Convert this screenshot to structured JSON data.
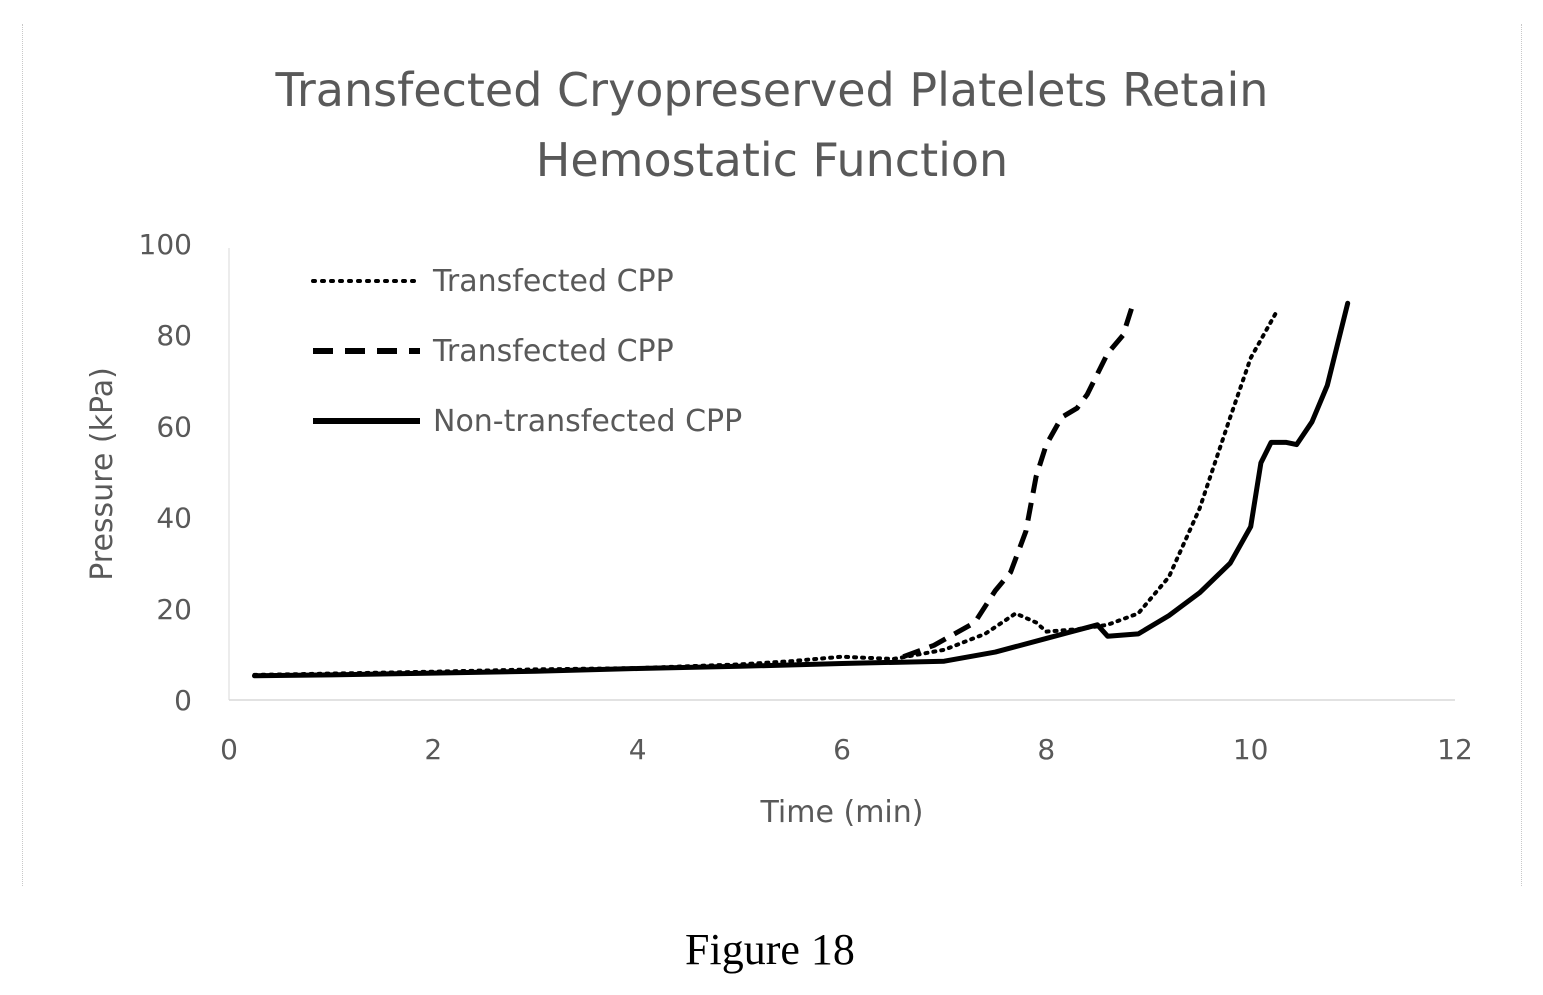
{
  "chart_data": {
    "type": "line",
    "title": [
      "Transfected Cryopreserved Platelets Retain",
      "Hemostatic Function"
    ],
    "xlabel": "Time (min)",
    "ylabel": "Pressure (kPa)",
    "xlim": [
      0,
      12
    ],
    "ylim": [
      0,
      100
    ],
    "x_ticks": [
      "0",
      "2",
      "4",
      "6",
      "8",
      "10",
      "12"
    ],
    "y_ticks": [
      "0",
      "20",
      "40",
      "60",
      "80",
      "100"
    ],
    "grid": false,
    "legend_position": "top-left",
    "series": [
      {
        "name": "Transfected CPP",
        "style": "dotted",
        "color": "#000000",
        "points": [
          [
            0.25,
            5.5
          ],
          [
            1,
            5.8
          ],
          [
            2,
            6.2
          ],
          [
            3,
            6.7
          ],
          [
            4,
            7.0
          ],
          [
            5,
            7.8
          ],
          [
            5.5,
            8.5
          ],
          [
            6,
            9.5
          ],
          [
            6.5,
            9.0
          ],
          [
            7.0,
            11.0
          ],
          [
            7.4,
            14.5
          ],
          [
            7.7,
            19.0
          ],
          [
            7.9,
            17.0
          ],
          [
            8.0,
            15.0
          ],
          [
            8.3,
            15.5
          ],
          [
            8.6,
            16.5
          ],
          [
            8.9,
            19.0
          ],
          [
            9.2,
            27.0
          ],
          [
            9.5,
            42.0
          ],
          [
            9.8,
            62.0
          ],
          [
            10.0,
            75.0
          ],
          [
            10.25,
            85.0
          ]
        ]
      },
      {
        "name": "Transfected CPP",
        "style": "dashed",
        "color": "#000000",
        "points": [
          [
            6.6,
            9.5
          ],
          [
            6.9,
            12.0
          ],
          [
            7.1,
            14.5
          ],
          [
            7.3,
            17.0
          ],
          [
            7.5,
            24.0
          ],
          [
            7.65,
            28.0
          ],
          [
            7.8,
            37.0
          ],
          [
            7.9,
            49.0
          ],
          [
            8.0,
            56.0
          ],
          [
            8.15,
            62.0
          ],
          [
            8.3,
            64.0
          ],
          [
            8.4,
            67.0
          ],
          [
            8.6,
            76.0
          ],
          [
            8.75,
            80.0
          ],
          [
            8.85,
            87.0
          ]
        ]
      },
      {
        "name": "Non-transfected CPP",
        "style": "solid",
        "color": "#000000",
        "points": [
          [
            0.25,
            5.3
          ],
          [
            1,
            5.5
          ],
          [
            2,
            5.9
          ],
          [
            3,
            6.3
          ],
          [
            4,
            6.9
          ],
          [
            5,
            7.4
          ],
          [
            6,
            8.0
          ],
          [
            7,
            8.5
          ],
          [
            7.5,
            10.5
          ],
          [
            8,
            13.5
          ],
          [
            8.5,
            16.5
          ],
          [
            8.6,
            14.0
          ],
          [
            8.9,
            14.5
          ],
          [
            9.2,
            18.5
          ],
          [
            9.5,
            23.5
          ],
          [
            9.8,
            30.0
          ],
          [
            10.0,
            38.0
          ],
          [
            10.1,
            52.0
          ],
          [
            10.2,
            56.5
          ],
          [
            10.35,
            56.5
          ],
          [
            10.45,
            56.0
          ],
          [
            10.6,
            61.0
          ],
          [
            10.75,
            69.0
          ],
          [
            10.85,
            78.0
          ],
          [
            10.95,
            87.0
          ]
        ]
      }
    ]
  },
  "figure_caption": "Figure 18"
}
